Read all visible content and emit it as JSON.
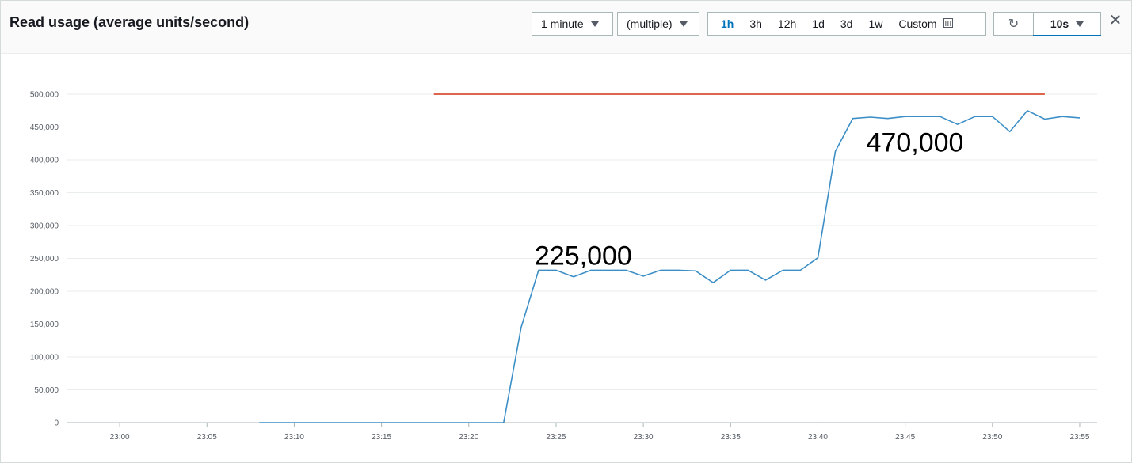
{
  "widget": {
    "title": "Read usage (average units/second)",
    "period_label": "1 minute",
    "statistic_label": "(multiple)",
    "time_ranges": [
      "1h",
      "3h",
      "12h",
      "1d",
      "3d",
      "1w"
    ],
    "active_range": "1h",
    "custom_label": "Custom",
    "refresh_interval_label": "10s",
    "refresh_icon": "refresh-icon",
    "close_icon": "close-icon",
    "calendar_icon": "calendar-icon"
  },
  "colors": {
    "series_line": "#3c8fc6",
    "threshold_line": "#d13212",
    "grid": "#eaeded",
    "accent": "#0073bb"
  },
  "chart_data": {
    "type": "line",
    "title": "Read usage (average units/second)",
    "xlabel": "",
    "ylabel": "",
    "ylim": [
      0,
      500000
    ],
    "yticks": [
      0,
      50000,
      100000,
      150000,
      200000,
      250000,
      300000,
      350000,
      400000,
      450000,
      500000
    ],
    "ytick_labels": [
      "0",
      "50,000",
      "100,000",
      "150,000",
      "200,000",
      "250,000",
      "300,000",
      "350,000",
      "400,000",
      "450,000",
      "500,000"
    ],
    "xticks": [
      "23:00",
      "23:05",
      "23:10",
      "23:15",
      "23:20",
      "23:25",
      "23:30",
      "23:35",
      "23:40",
      "23:45",
      "23:50",
      "23:55"
    ],
    "x_range": [
      "22:57",
      "23:56"
    ],
    "grid": true,
    "legend": "none",
    "series": [
      {
        "x": [
          "23:08",
          "23:09",
          "23:10",
          "23:11",
          "23:12",
          "23:13",
          "23:14",
          "23:15",
          "23:16",
          "23:17",
          "23:18",
          "23:19",
          "23:20",
          "23:21",
          "23:22",
          "23:23",
          "23:24",
          "23:25",
          "23:26",
          "23:27",
          "23:28",
          "23:29",
          "23:30",
          "23:31",
          "23:32",
          "23:33",
          "23:34",
          "23:35",
          "23:36",
          "23:37",
          "23:38",
          "23:39",
          "23:40",
          "23:41",
          "23:42",
          "23:43",
          "23:44",
          "23:45",
          "23:46",
          "23:47",
          "23:48",
          "23:49",
          "23:50",
          "23:51",
          "23:52",
          "23:53",
          "23:54",
          "23:55"
        ],
        "values": [
          0,
          0,
          0,
          0,
          0,
          0,
          0,
          0,
          0,
          0,
          0,
          0,
          0,
          0,
          0,
          145000,
          232000,
          232000,
          222000,
          232000,
          232000,
          232000,
          223000,
          232000,
          232000,
          231000,
          213000,
          232000,
          232000,
          217000,
          232000,
          232000,
          251000,
          413000,
          463000,
          465000,
          463000,
          466000,
          466000,
          466000,
          454000,
          466000,
          466000,
          443000,
          475000,
          462000,
          466000,
          464000
        ]
      },
      {
        "x": [
          "23:18",
          "23:53"
        ],
        "values": [
          500000,
          500000
        ]
      }
    ],
    "annotations": [
      {
        "text": "225,000",
        "x": "23:24",
        "y": 255000
      },
      {
        "text": "470,000",
        "x": "23:43",
        "y": 427000
      }
    ]
  }
}
